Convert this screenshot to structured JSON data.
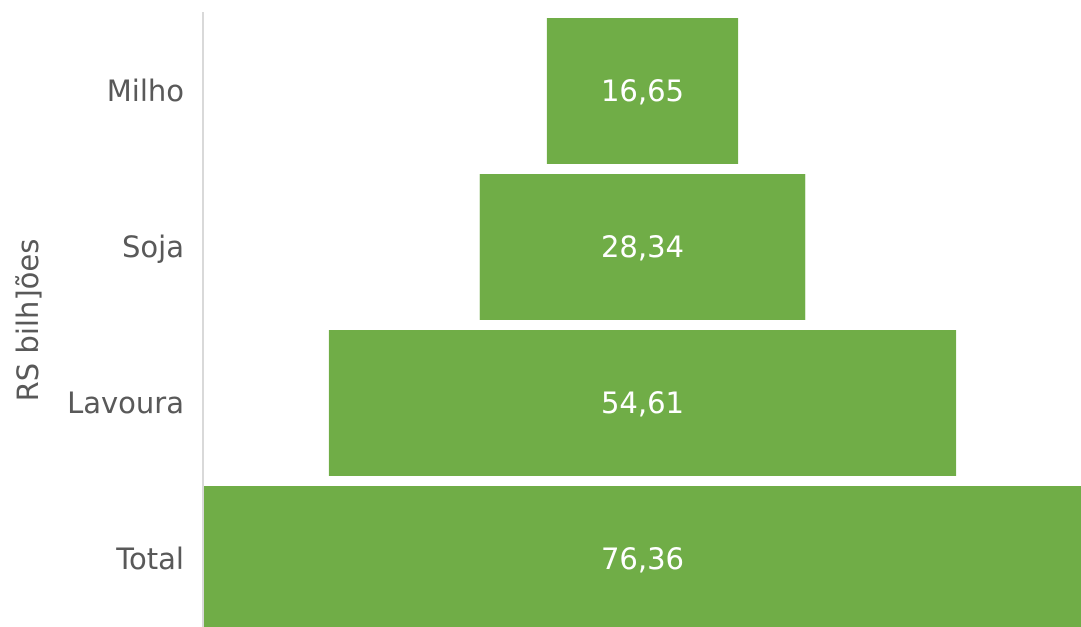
{
  "chart_data": {
    "type": "bar",
    "subtype": "funnel",
    "orientation": "horizontal",
    "ylabel": "RS bilh]ões",
    "categories": [
      "Milho",
      "Soja",
      "Lavoura",
      "Total"
    ],
    "values": [
      16.65,
      28.34,
      54.61,
      76.36
    ],
    "value_labels": [
      "16,65",
      "28,34",
      "54,61",
      "76,36"
    ],
    "xlim": [
      0,
      76.36
    ],
    "grid": false,
    "legend": "none",
    "colors": {
      "bar": "#70AD47",
      "text": "#595959",
      "axis": "#D9D9D9"
    }
  }
}
